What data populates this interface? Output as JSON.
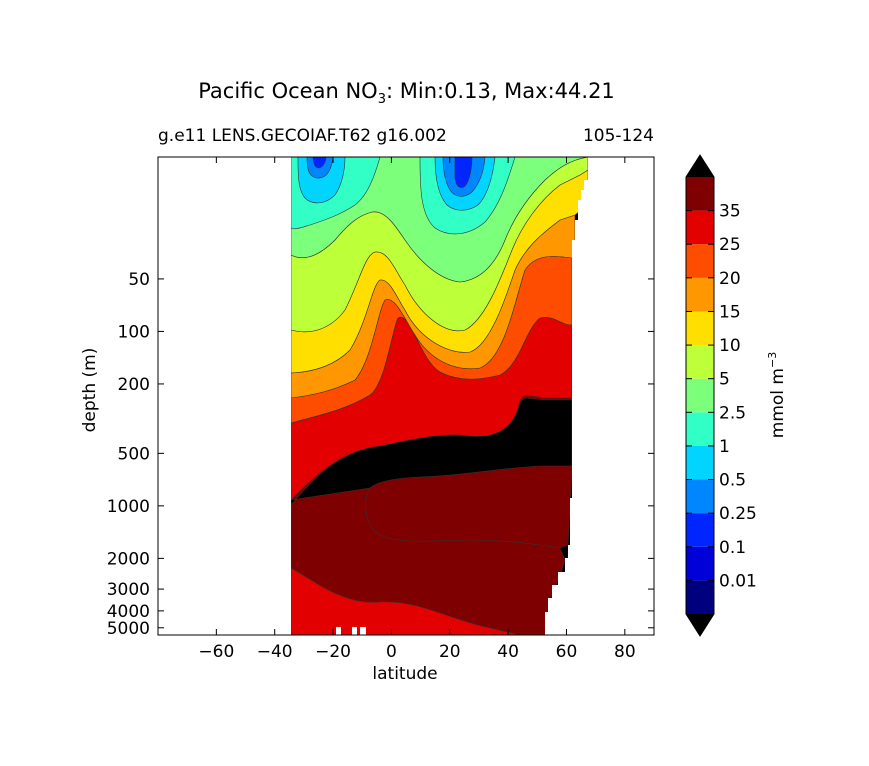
{
  "chart_data": {
    "type": "contour",
    "title_main": "Pacific Ocean NO",
    "title_sub": "3",
    "title_rest": ": Min:0.13, Max:44.21",
    "subtitle_left": "g.e11 LENS.GECOIAF.T62 g16.002",
    "subtitle_right": "105-124",
    "xlabel": "latitude",
    "ylabel": "depth (m)",
    "xlim": [
      -80,
      90
    ],
    "x_ticks": [
      -60,
      -40,
      -20,
      0,
      20,
      40,
      60,
      80
    ],
    "x_tick_labels": [
      "−60",
      "−40",
      "−20",
      "0",
      "20",
      "40",
      "60",
      "80"
    ],
    "y_scale": "log (inverted)",
    "ylim": [
      5500,
      10
    ],
    "y_ticks": [
      50,
      100,
      200,
      500,
      1000,
      2000,
      3000,
      4000,
      5000
    ],
    "y_tick_labels": [
      "50",
      "100",
      "200",
      "500",
      "1000",
      "2000",
      "3000",
      "4000",
      "5000"
    ],
    "colorbar": {
      "label_main": "mmol m",
      "label_sup": "−3",
      "levels": [
        "0.01",
        "0.1",
        "0.25",
        "0.5",
        "1",
        "2.5",
        "5",
        "10",
        "15",
        "20",
        "25",
        "35"
      ],
      "colors": [
        "#00007f",
        "#0000d8",
        "#0025ff",
        "#0086ff",
        "#00d4ff",
        "#31ffc5",
        "#7cff7a",
        "#bdff39",
        "#ffdf00",
        "#ff9700",
        "#ff4d00",
        "#e20000",
        "#7f0000"
      ],
      "over_color": "#000000",
      "under_color": "#000000",
      "extend": "both"
    },
    "data_extent": {
      "lat_min": -34,
      "lat_max": 67
    },
    "bands": [
      {
        "name": "0.1-0.25 core",
        "color": "#0025ff"
      },
      {
        "name": "0.25-0.5",
        "color": "#0086ff"
      },
      {
        "name": "0.5-1",
        "color": "#00d4ff"
      },
      {
        "name": "1-2.5",
        "color": "#31ffc5"
      },
      {
        "name": "2.5-5",
        "color": "#7cff7a"
      },
      {
        "name": "5-10",
        "color": "#bdff39"
      },
      {
        "name": "10-15",
        "color": "#ffdf00"
      },
      {
        "name": "15-20",
        "color": "#ff9700"
      },
      {
        "name": "20-25",
        "color": "#ff4d00"
      },
      {
        "name": "25-35",
        "color": "#e20000"
      },
      {
        "name": "35-44",
        "color": "#7f0000"
      },
      {
        "name": ">44",
        "color": "#000000"
      }
    ],
    "grid": false
  }
}
